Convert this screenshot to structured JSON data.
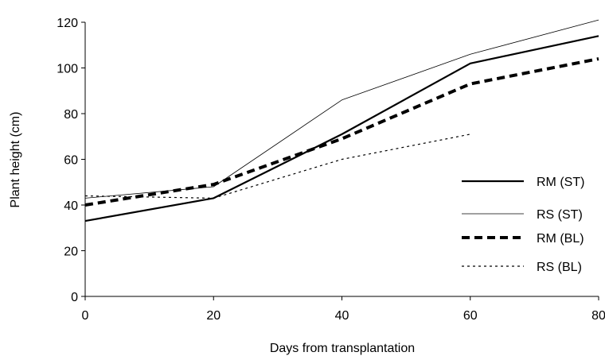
{
  "chart_data": {
    "type": "line",
    "title": "",
    "xlabel": "Days from transplantation",
    "ylabel": "Plant height (cm)",
    "xlim": [
      0,
      80
    ],
    "ylim": [
      0,
      120
    ],
    "xticks": [
      0,
      20,
      40,
      60,
      80
    ],
    "yticks": [
      0,
      20,
      40,
      60,
      80,
      100,
      120
    ],
    "grid": false,
    "legend_position": "right",
    "series": [
      {
        "name": "RM (ST)",
        "style": "thick-solid",
        "color": "#000000",
        "x": [
          0,
          20,
          40,
          60,
          80
        ],
        "y": [
          33,
          43,
          71,
          102,
          114
        ]
      },
      {
        "name": "RS (ST)",
        "style": "thin-solid",
        "color": "#000000",
        "x": [
          0,
          20,
          40,
          60,
          80
        ],
        "y": [
          43,
          48,
          86,
          106,
          121
        ]
      },
      {
        "name": "RM (BL)",
        "style": "thick-dashed",
        "color": "#000000",
        "x": [
          0,
          20,
          40,
          60,
          80
        ],
        "y": [
          40,
          49,
          69,
          93,
          104
        ]
      },
      {
        "name": "RS (BL)",
        "style": "thin-dotted",
        "color": "#000000",
        "x": [
          0,
          20,
          40,
          60
        ],
        "y": [
          44,
          43,
          60,
          71
        ]
      }
    ]
  }
}
